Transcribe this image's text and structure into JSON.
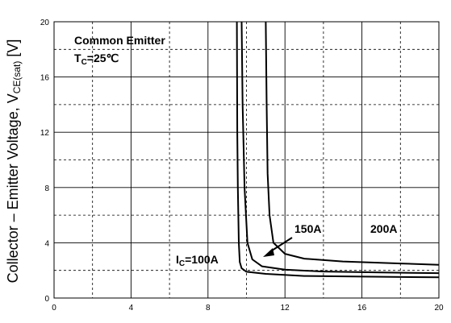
{
  "chart_data": {
    "type": "line",
    "title": "",
    "xlabel": "",
    "ylabel": {
      "main": "Collector – Emitter Voltage, V",
      "subscript": "CE(sat)",
      "unit": " [V]"
    },
    "xlim": [
      0,
      20
    ],
    "ylim": [
      0,
      20
    ],
    "grid": true,
    "x_ticks": [
      0,
      4,
      8,
      12,
      16,
      20
    ],
    "x_minor_grid": [
      2,
      6,
      10,
      14,
      18
    ],
    "y_ticks": [
      0,
      4,
      8,
      12,
      16,
      20
    ],
    "y_minor_grid": [
      2,
      6,
      10,
      14,
      18
    ],
    "annotation_box": {
      "line1": "Common Emitter",
      "line2_main": "T",
      "line2_sub": "C",
      "line2_rest": "=25℃"
    },
    "series": [
      {
        "name": "I_C=100A",
        "label_main": "I",
        "label_sub": "C",
        "label_rest": "=100A",
        "points": [
          [
            9.5,
            20
          ],
          [
            9.52,
            12
          ],
          [
            9.55,
            8
          ],
          [
            9.6,
            4
          ],
          [
            9.65,
            2.6
          ],
          [
            9.75,
            2.15
          ],
          [
            10,
            1.9
          ],
          [
            11,
            1.75
          ],
          [
            13,
            1.6
          ],
          [
            16,
            1.55
          ],
          [
            20,
            1.5
          ]
        ]
      },
      {
        "name": "150A",
        "label_main": "150A",
        "label_sub": "",
        "label_rest": "",
        "points": [
          [
            9.75,
            20
          ],
          [
            9.8,
            14
          ],
          [
            9.9,
            8
          ],
          [
            10.05,
            4
          ],
          [
            10.3,
            2.8
          ],
          [
            10.8,
            2.3
          ],
          [
            12,
            2.05
          ],
          [
            14,
            1.92
          ],
          [
            17,
            1.85
          ],
          [
            20,
            1.8
          ]
        ]
      },
      {
        "name": "200A",
        "label_main": "200A",
        "label_sub": "",
        "label_rest": "",
        "points": [
          [
            11,
            20
          ],
          [
            11.05,
            14
          ],
          [
            11.1,
            9
          ],
          [
            11.2,
            6
          ],
          [
            11.4,
            4
          ],
          [
            12,
            3.2
          ],
          [
            13,
            2.85
          ],
          [
            15,
            2.65
          ],
          [
            18,
            2.5
          ],
          [
            20,
            2.4
          ]
        ]
      }
    ]
  }
}
